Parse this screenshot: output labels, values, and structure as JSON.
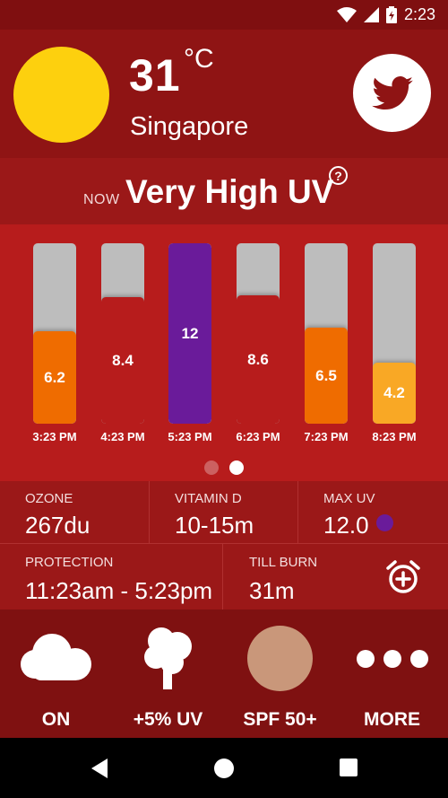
{
  "status_bar": {
    "time": "2:23",
    "icons": [
      "wifi-icon",
      "signal-icon",
      "battery-charging-icon"
    ]
  },
  "header": {
    "temperature": "31",
    "unit": "°C",
    "city": "Singapore",
    "share_icon": "twitter-icon"
  },
  "uv_now": {
    "label": "NOW",
    "level": "Very High UV",
    "help_icon": "help-icon",
    "help_glyph": "?"
  },
  "forecast": {
    "bars": [
      {
        "value": "6.2",
        "time": "3:23 PM",
        "color": "#ef6c00",
        "fraction": 0.51
      },
      {
        "value": "8.4",
        "time": "4:23 PM",
        "color": "#b71c1c",
        "fraction": 0.7
      },
      {
        "value": "12",
        "time": "5:23 PM",
        "color": "#6a1b9a",
        "fraction": 1.0
      },
      {
        "value": "8.6",
        "time": "6:23 PM",
        "color": "#b71c1c",
        "fraction": 0.71
      },
      {
        "value": "6.5",
        "time": "7:23 PM",
        "color": "#ef6c00",
        "fraction": 0.53
      },
      {
        "value": "4.2",
        "time": "8:23 PM",
        "color": "#f9a825",
        "fraction": 0.34
      }
    ],
    "pages": {
      "count": 2,
      "active": 1
    }
  },
  "stats": {
    "ozone": {
      "label": "OZONE",
      "value": "267du"
    },
    "vitamin_d": {
      "label": "VITAMIN D",
      "value": "10-15m"
    },
    "max_uv": {
      "label": "MAX UV",
      "value": "12.0",
      "color": "#6a1b9a"
    },
    "protection": {
      "label": "PROTECTION",
      "value": "11:23am - 5:23pm"
    },
    "till_burn": {
      "label": "TILL BURN",
      "value": "31m"
    },
    "alarm_icon": "add-alarm-icon"
  },
  "actions": [
    {
      "label": "ON",
      "icon": "cloud-icon"
    },
    {
      "label": "+5% UV",
      "icon": "tree-icon"
    },
    {
      "label": "SPF 50+",
      "icon": "skin-tone-icon"
    },
    {
      "label": "MORE",
      "icon": "more-dots-icon"
    }
  ],
  "colors": {
    "header_bg": "#8f1414",
    "forecast_bg": "#b71c1c",
    "actions_bg": "#7f1111",
    "sun": "#fdd00e",
    "skin_tone": "#c9977a"
  },
  "nav_bar": {
    "icons": [
      "back-icon",
      "home-icon",
      "recents-icon"
    ]
  }
}
